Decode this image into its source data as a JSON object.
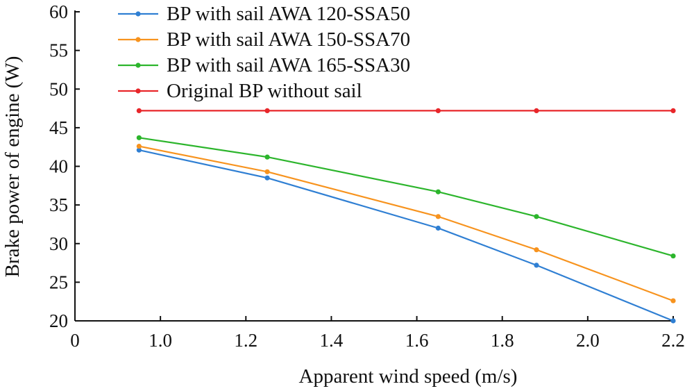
{
  "chart_data": {
    "type": "line",
    "title": "",
    "xlabel": "Apparent wind speed (m/s)",
    "ylabel": "Brake power of engine (W)",
    "xlim": [
      0.8,
      2.2
    ],
    "ylim": [
      20,
      60
    ],
    "x_ticks": [
      "0",
      "1.0",
      "1.2",
      "1.4",
      "1.6",
      "1.8",
      "2.0",
      "2.2"
    ],
    "y_ticks": [
      "20",
      "25",
      "30",
      "35",
      "40",
      "45",
      "50",
      "55",
      "60"
    ],
    "grid": false,
    "legend_position": "top-left",
    "x": [
      0.95,
      1.25,
      1.65,
      1.88,
      2.2
    ],
    "series": [
      {
        "name": "BP with sail AWA 120-SSA50",
        "color": "#2f7fd3",
        "values": [
          42.1,
          38.5,
          32.0,
          27.2,
          20.0
        ]
      },
      {
        "name": "BP with sail AWA 150-SSA70",
        "color": "#f7931e",
        "values": [
          42.6,
          39.3,
          33.5,
          29.2,
          22.6
        ]
      },
      {
        "name": "BP with sail AWA 165-SSA30",
        "color": "#2cb52c",
        "values": [
          43.7,
          41.2,
          36.7,
          33.5,
          28.4
        ]
      },
      {
        "name": "Original BP without sail",
        "color": "#e8262a",
        "values": [
          47.2,
          47.2,
          47.2,
          47.2,
          47.2
        ]
      }
    ]
  }
}
